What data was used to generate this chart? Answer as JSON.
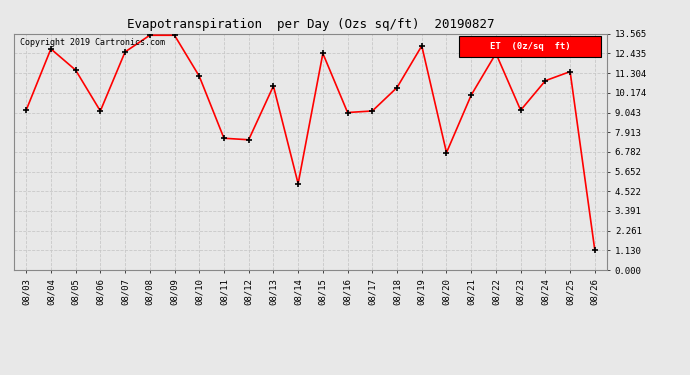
{
  "title": "Evapotranspiration  per Day (Ozs sq/ft)  20190827",
  "copyright": "Copyright 2019 Cartronics.com",
  "legend_label": "ET  (0z/sq  ft)",
  "x_labels": [
    "08/03",
    "08/04",
    "08/05",
    "08/06",
    "08/07",
    "08/08",
    "08/09",
    "08/10",
    "08/11",
    "08/12",
    "08/13",
    "08/14",
    "08/15",
    "08/16",
    "08/17",
    "08/18",
    "08/19",
    "08/20",
    "08/21",
    "08/22",
    "08/23",
    "08/24",
    "08/25",
    "08/26"
  ],
  "y_values": [
    9.174,
    12.696,
    11.478,
    9.13,
    12.522,
    13.478,
    13.478,
    11.13,
    7.565,
    7.478,
    10.565,
    4.957,
    12.435,
    9.043,
    9.13,
    10.478,
    12.87,
    6.739,
    10.043,
    12.435,
    9.174,
    10.87,
    11.391,
    1.13
  ],
  "y_ticks": [
    0.0,
    1.13,
    2.261,
    3.391,
    4.522,
    5.652,
    6.782,
    7.913,
    9.043,
    10.174,
    11.304,
    12.435,
    13.565
  ],
  "y_min": 0.0,
  "y_max": 13.565,
  "line_color": "red",
  "marker_color": "black",
  "grid_color": "#c8c8c8",
  "bg_color": "#e8e8e8",
  "plot_bg_color": "#e8e8e8",
  "legend_bg": "red",
  "legend_text_color": "white"
}
